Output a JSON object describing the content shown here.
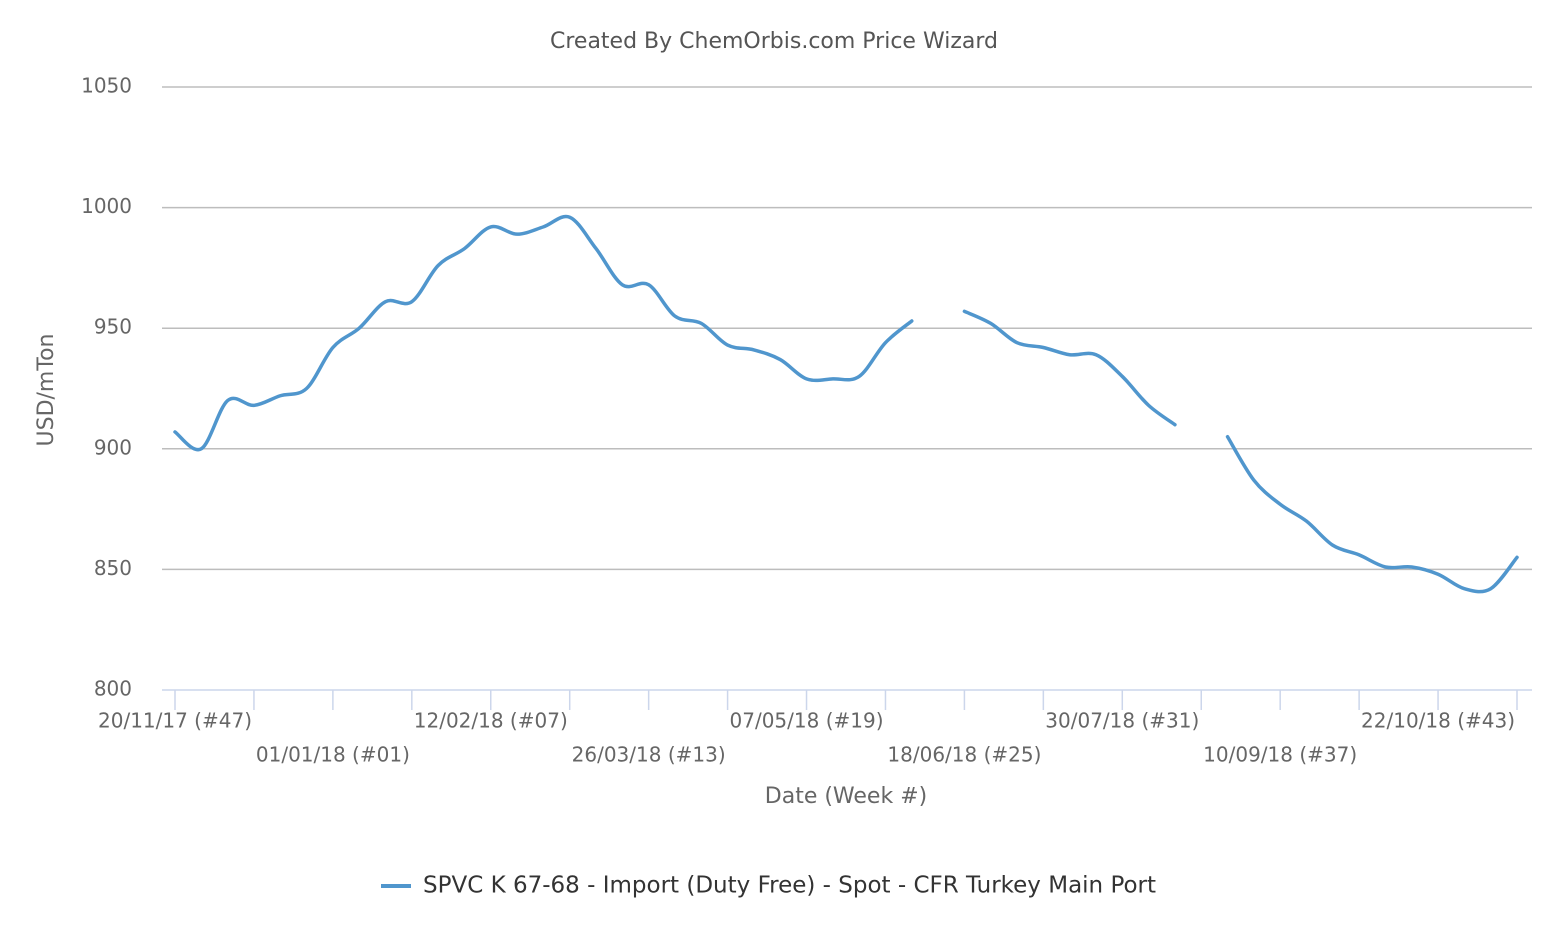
{
  "chart_data": {
    "type": "line",
    "title": "Created By ChemOrbis.com Price Wizard",
    "x_label": "Date (Week #)",
    "y_label": "USD/mTon",
    "categories": [
      "20/11/17 (#47)",
      null,
      null,
      null,
      null,
      null,
      "01/01/18 (#01)",
      null,
      null,
      null,
      null,
      null,
      "12/02/18 (#07)",
      null,
      null,
      null,
      null,
      null,
      "26/03/18 (#13)",
      null,
      null,
      null,
      null,
      null,
      "07/05/18 (#19)",
      null,
      null,
      null,
      null,
      null,
      "18/06/18 (#25)",
      null,
      null,
      null,
      null,
      null,
      "30/07/18 (#31)",
      null,
      null,
      null,
      null,
      null,
      "10/09/18 (#37)",
      null,
      null,
      null,
      null,
      null,
      "22/10/18 (#43)",
      null,
      null,
      null
    ],
    "series": [
      {
        "name": "SPVC K 67-68 - Import (Duty Free) - Spot - CFR Turkey Main Port",
        "color": "#5096cd",
        "values": [
          907,
          900,
          920,
          918,
          922,
          925,
          942,
          950,
          961,
          961,
          976,
          983,
          992,
          989,
          992,
          996,
          983,
          968,
          968,
          955,
          952,
          943,
          941,
          937,
          929,
          929,
          930,
          944,
          953,
          null,
          957,
          952,
          944,
          942,
          939,
          939,
          930,
          918,
          910,
          null,
          905,
          887,
          877,
          870,
          860,
          856,
          851,
          851,
          848,
          842,
          842,
          855
        ]
      }
    ],
    "ylim": [
      800,
      1050
    ],
    "yticks": [
      800,
      850,
      900,
      950,
      1000,
      1050
    ],
    "grid": true,
    "legend": "bottom"
  }
}
